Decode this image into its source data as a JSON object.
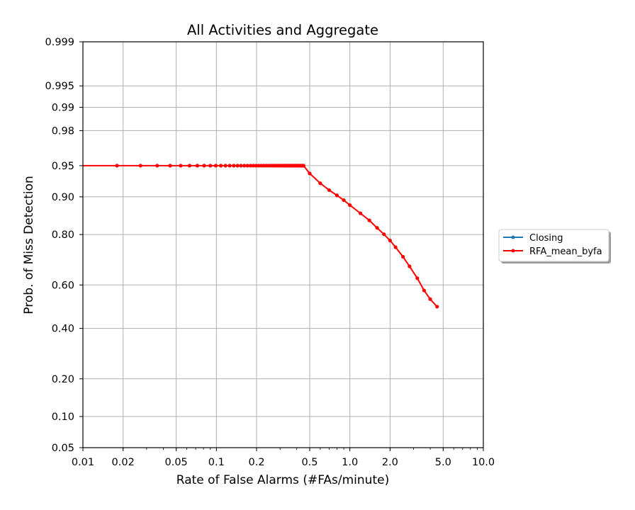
{
  "chart_data": {
    "type": "line",
    "title": "All Activities and Aggregate",
    "xlabel": "Rate of False Alarms (#FAs/minute)",
    "ylabel": "Prob. of Miss Detection",
    "x_scale": "log",
    "y_scale": "normal-deviate (probit)",
    "xlim": [
      0.01,
      10.0
    ],
    "ylim": [
      0.05,
      0.999
    ],
    "xticks": [
      0.01,
      0.02,
      0.05,
      0.1,
      0.2,
      0.5,
      1.0,
      2.0,
      5.0,
      10.0
    ],
    "xtick_labels": [
      "0.01",
      "0.02",
      "0.05",
      "0.1",
      "0.2",
      "0.5",
      "1.0",
      "2.0",
      "5.0",
      "10.0"
    ],
    "yticks": [
      0.05,
      0.1,
      0.2,
      0.4,
      0.6,
      0.8,
      0.9,
      0.95,
      0.98,
      0.99,
      0.995,
      0.999
    ],
    "ytick_labels": [
      "0.05",
      "0.10",
      "0.20",
      "0.40",
      "0.60",
      "0.80",
      "0.90",
      "0.95",
      "0.98",
      "0.99",
      "0.995",
      "0.999"
    ],
    "grid": true,
    "legend_position": "right, outside plot",
    "series": [
      {
        "name": "Closing",
        "color": "#1f77b4",
        "x": [],
        "y": []
      },
      {
        "name": "RFA_mean_byfa",
        "color": "#ff0000",
        "line_start_x": 0.01,
        "x": [
          0.018,
          0.027,
          0.036,
          0.045,
          0.054,
          0.063,
          0.072,
          0.081,
          0.09,
          0.099,
          0.108,
          0.117,
          0.126,
          0.135,
          0.144,
          0.153,
          0.162,
          0.171,
          0.18,
          0.189,
          0.198,
          0.207,
          0.216,
          0.225,
          0.234,
          0.243,
          0.252,
          0.261,
          0.27,
          0.279,
          0.288,
          0.297,
          0.306,
          0.315,
          0.324,
          0.333,
          0.342,
          0.351,
          0.36,
          0.369,
          0.378,
          0.387,
          0.396,
          0.405,
          0.414,
          0.423,
          0.432,
          0.441,
          0.45,
          0.5,
          0.6,
          0.7,
          0.8,
          0.9,
          1.0,
          1.2,
          1.4,
          1.6,
          1.8,
          2.0,
          2.2,
          2.5,
          2.8,
          3.2,
          3.6,
          4.0,
          4.5
        ],
        "y": [
          0.95,
          0.95,
          0.95,
          0.95,
          0.95,
          0.95,
          0.95,
          0.95,
          0.95,
          0.95,
          0.95,
          0.95,
          0.95,
          0.95,
          0.95,
          0.95,
          0.95,
          0.95,
          0.95,
          0.95,
          0.95,
          0.95,
          0.95,
          0.95,
          0.95,
          0.95,
          0.95,
          0.95,
          0.95,
          0.95,
          0.95,
          0.95,
          0.95,
          0.95,
          0.95,
          0.95,
          0.95,
          0.95,
          0.95,
          0.95,
          0.95,
          0.95,
          0.95,
          0.95,
          0.95,
          0.95,
          0.95,
          0.95,
          0.95,
          0.94,
          0.925,
          0.913,
          0.903,
          0.893,
          0.882,
          0.862,
          0.843,
          0.821,
          0.801,
          0.78,
          0.756,
          0.72,
          0.681,
          0.63,
          0.575,
          0.535,
          0.5
        ]
      }
    ]
  }
}
